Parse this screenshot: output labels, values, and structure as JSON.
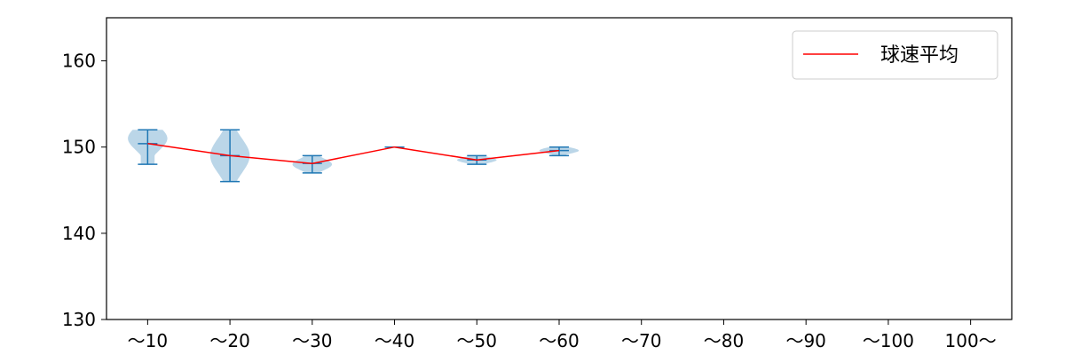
{
  "chart_data": {
    "type": "violin",
    "title": "",
    "xlabel": "",
    "ylabel": "",
    "ylim": [
      130,
      165
    ],
    "yticks": [
      130,
      140,
      150,
      160
    ],
    "categories": [
      "〜10",
      "〜20",
      "〜30",
      "〜40",
      "〜50",
      "〜60",
      "〜70",
      "〜80",
      "〜90",
      "〜100",
      "100〜"
    ],
    "violins": [
      {
        "category": "〜10",
        "min": 148,
        "max": 152,
        "mean": 150.4,
        "density_center": 151,
        "width": 0.48
      },
      {
        "category": "〜20",
        "min": 146,
        "max": 152,
        "mean": 149.0,
        "density_center": 149,
        "width": 0.48
      },
      {
        "category": "〜30",
        "min": 147,
        "max": 149,
        "mean": 148.1,
        "density_center": 148,
        "width": 0.48
      },
      {
        "category": "〜40",
        "min": 150,
        "max": 150,
        "mean": 150.0,
        "density_center": 150,
        "width": 0.0
      },
      {
        "category": "〜50",
        "min": 148,
        "max": 149,
        "mean": 148.5,
        "density_center": 148.5,
        "width": 0.48
      },
      {
        "category": "〜60",
        "min": 149,
        "max": 150,
        "mean": 149.6,
        "density_center": 149.6,
        "width": 0.48
      }
    ],
    "series": [
      {
        "name": "球速平均",
        "color": "#ff0000",
        "categories": [
          "〜10",
          "〜20",
          "〜30",
          "〜40",
          "〜50",
          "〜60"
        ],
        "values": [
          150.4,
          149.0,
          148.1,
          150.0,
          148.5,
          149.6
        ]
      }
    ],
    "colors": {
      "violin_fill": "#1f77b4",
      "violin_edge": "#1f77b4",
      "mean_line": "#ff0000"
    },
    "legend": {
      "position": "top-right",
      "entries": [
        "球速平均"
      ]
    },
    "grid": false
  }
}
